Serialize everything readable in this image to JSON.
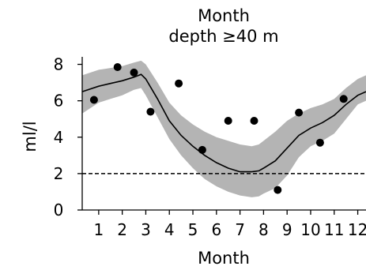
{
  "chart_data": {
    "type": "line",
    "title": "Month",
    "subtitle": "depth ≥40 m",
    "xlabel": "Month",
    "ylabel": "ml/l",
    "xlim": [
      0.3,
      12.35
    ],
    "ylim": [
      0,
      8.5
    ],
    "x_ticks": [
      1,
      2,
      3,
      4,
      5,
      6,
      7,
      8,
      9,
      10,
      11,
      12
    ],
    "x_tick_labels": [
      "1",
      "2",
      "3",
      "4",
      "5",
      "6",
      "7",
      "8",
      "9",
      "10",
      "11",
      "12"
    ],
    "y_ticks": [
      0,
      2,
      4,
      6,
      8
    ],
    "y_tick_labels": [
      "0",
      "2",
      "4",
      "6",
      "8"
    ],
    "grid": false,
    "legend": "none",
    "reference_line": {
      "y": 2.0,
      "style": "dashed"
    },
    "band": {
      "x": [
        0.3,
        1.0,
        1.5,
        2.0,
        2.5,
        2.8,
        3.0,
        3.5,
        4.0,
        4.5,
        5.0,
        5.5,
        6.0,
        6.5,
        7.0,
        7.5,
        7.8,
        8.0,
        8.5,
        9.0,
        9.5,
        10.0,
        10.5,
        11.0,
        11.5,
        12.0,
        12.35
      ],
      "lower": [
        5.3,
        5.9,
        6.1,
        6.3,
        6.6,
        6.7,
        6.3,
        5.1,
        3.9,
        3.0,
        2.3,
        1.7,
        1.3,
        1.0,
        0.8,
        0.7,
        0.75,
        0.9,
        1.2,
        1.9,
        2.9,
        3.5,
        3.8,
        4.2,
        5.0,
        5.8,
        6.0
      ],
      "upper": [
        7.4,
        7.7,
        7.8,
        7.9,
        8.1,
        8.2,
        8.0,
        7.0,
        5.9,
        5.2,
        4.7,
        4.3,
        4.0,
        3.8,
        3.6,
        3.5,
        3.6,
        3.8,
        4.3,
        4.9,
        5.3,
        5.6,
        5.8,
        6.1,
        6.7,
        7.2,
        7.4
      ]
    },
    "series": [
      {
        "type": "line",
        "x": [
          0.3,
          1.0,
          1.5,
          2.0,
          2.5,
          2.8,
          3.0,
          3.5,
          4.0,
          4.5,
          5.0,
          5.5,
          6.0,
          6.5,
          7.0,
          7.5,
          7.8,
          8.0,
          8.5,
          9.0,
          9.5,
          10.0,
          10.5,
          11.0,
          11.5,
          12.0,
          12.35
        ],
        "y": [
          6.5,
          6.8,
          6.95,
          7.1,
          7.3,
          7.45,
          7.2,
          6.1,
          4.9,
          4.1,
          3.5,
          3.0,
          2.6,
          2.3,
          2.1,
          2.1,
          2.15,
          2.3,
          2.7,
          3.4,
          4.1,
          4.5,
          4.8,
          5.2,
          5.8,
          6.3,
          6.5
        ]
      },
      {
        "type": "scatter",
        "x": [
          0.8,
          1.8,
          2.5,
          3.2,
          4.4,
          5.4,
          6.5,
          7.6,
          8.6,
          9.5,
          10.4,
          11.4
        ],
        "y": [
          6.05,
          7.85,
          7.55,
          5.4,
          6.95,
          3.3,
          4.9,
          4.9,
          1.1,
          5.35,
          3.7,
          6.1
        ]
      }
    ]
  }
}
